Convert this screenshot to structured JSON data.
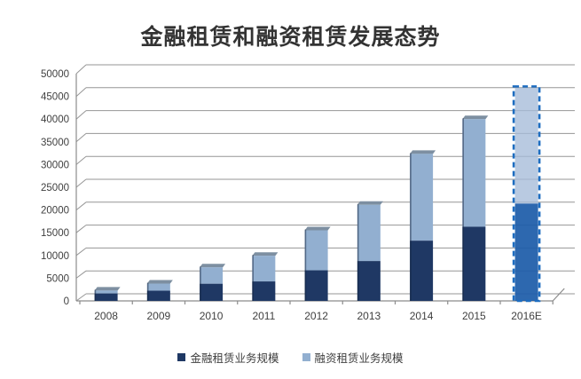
{
  "title": "金融租赁和融资租赁发展态势",
  "chart_data": {
    "type": "bar",
    "stacked": true,
    "title": "金融租赁和融资租赁发展态势",
    "categories": [
      "2008",
      "2009",
      "2010",
      "2011",
      "2012",
      "2013",
      "2014",
      "2015",
      "2016E"
    ],
    "series": [
      {
        "name": "金融租赁业务规模",
        "color": "#1F3864",
        "values": [
          1600,
          2200,
          3700,
          4200,
          6600,
          8600,
          13000,
          16000,
          21000
        ]
      },
      {
        "name": "融资租赁业务规模",
        "color": "#92AFD0",
        "values": [
          1400,
          2300,
          4300,
          6300,
          9400,
          12900,
          19500,
          24000,
          25000
        ]
      }
    ],
    "totals": [
      3000,
      4500,
      8000,
      10500,
      16000,
      21500,
      32500,
      40000,
      46000
    ],
    "highlight_category": "2016E",
    "highlight_style": {
      "dash_color": "#1E6DC0",
      "dark_fill": "#1D5CA9",
      "light_fill": "#A5BBD8"
    },
    "ylim": [
      0,
      50000
    ],
    "ytick_step": 5000,
    "yticks": [
      0,
      5000,
      10000,
      15000,
      20000,
      25000,
      30000,
      35000,
      40000,
      45000,
      50000
    ],
    "xlabel": "",
    "ylabel": "",
    "grid": true,
    "legend_position": "bottom",
    "pseudo_3d": true
  },
  "style": {
    "background": "#FFFFFF",
    "title_color": "#333333",
    "grid_color": "#969696",
    "axis_color": "#8C8C8C",
    "tick_label_color": "#3F3F3F",
    "cap_color": "#7D8FA1",
    "bar_edge_shadow": "#14233E"
  },
  "legend": {
    "items": [
      "金融租赁业务规模",
      "融资租赁业务规模"
    ]
  }
}
